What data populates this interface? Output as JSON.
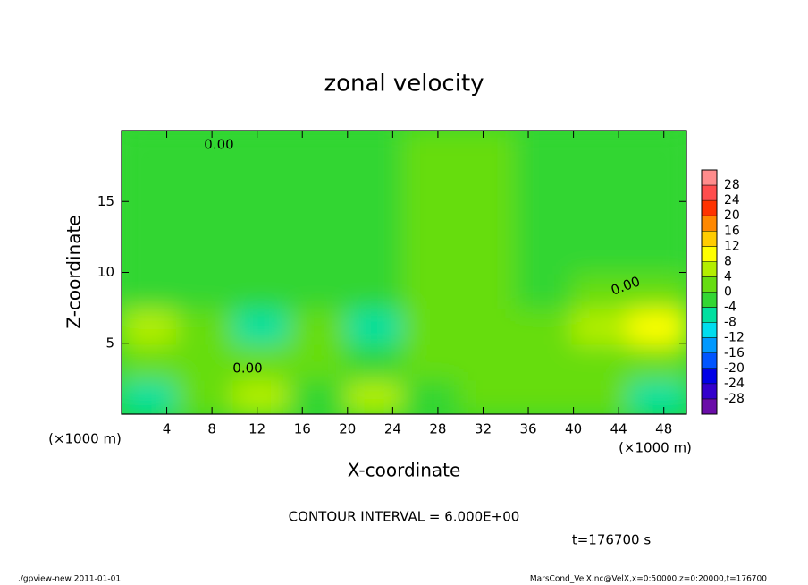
{
  "chart_data": {
    "type": "heatmap",
    "title": "zonal velocity",
    "x_label": "X-coordinate",
    "y_label": "Z-coordinate",
    "x_unit": "(×1000 m)",
    "y_unit": "(×1000 m)",
    "x": [
      2.5,
      7.5,
      12.5,
      17.5,
      22.5,
      27.5,
      32.5,
      37.5,
      42.5,
      47.5
    ],
    "y": [
      1.25,
      3.75,
      6.25,
      8.75,
      11.25,
      13.75,
      16.25,
      18.75
    ],
    "values": [
      [
        -6,
        2,
        6,
        -2,
        5,
        -3,
        1,
        0,
        3,
        -8
      ],
      [
        0,
        3,
        3,
        1,
        -2,
        1,
        3,
        3,
        2,
        3
      ],
      [
        6,
        2,
        -5,
        1,
        -5,
        2,
        1,
        0,
        4,
        10
      ],
      [
        -1,
        -2,
        -2,
        -3,
        -2,
        0,
        1,
        -2,
        0,
        3
      ],
      [
        -1,
        -1,
        -1,
        -1,
        -1,
        2,
        2,
        -1,
        -1,
        -1
      ],
      [
        -1,
        -1,
        -1,
        -1,
        -1,
        1,
        1,
        -1,
        -1,
        -1
      ],
      [
        -1,
        -1,
        -1,
        -1,
        -1,
        1,
        1,
        -1,
        -1,
        -1
      ],
      [
        -1,
        -1,
        -1,
        -1,
        -1,
        0,
        0,
        -1,
        -1,
        -1
      ]
    ],
    "xlim": [
      0,
      50
    ],
    "ylim": [
      0,
      20
    ],
    "xticks": [
      4,
      8,
      12,
      16,
      20,
      24,
      28,
      32,
      36,
      40,
      44,
      48
    ],
    "yticks": [
      5,
      10,
      15
    ],
    "colorbar": {
      "lim": [
        -32,
        32
      ],
      "ticks": [
        -28,
        -24,
        -20,
        -16,
        -12,
        -8,
        -4,
        0,
        4,
        8,
        12,
        16,
        20,
        24,
        28
      ],
      "colors": [
        "#6a0da8",
        "#3300cc",
        "#0000e6",
        "#0055ff",
        "#0099ff",
        "#00ddee",
        "#00e0a0",
        "#33d633",
        "#66dd11",
        "#b3ee00",
        "#ffff00",
        "#ffcc00",
        "#ff8800",
        "#ff3300",
        "#ff4d4d",
        "#ff8c8c"
      ]
    },
    "contour_labels": [
      "0.00",
      "0.00",
      "0.00"
    ],
    "contour_interval": "CONTOUR INTERVAL = 6.000E+00",
    "time_label": "t=176700 s",
    "footer_left": "./gpview-new  2011-01-01",
    "footer_right": "MarsCond_VelX.nc@VelX,x=0:50000,z=0:20000,t=176700"
  }
}
